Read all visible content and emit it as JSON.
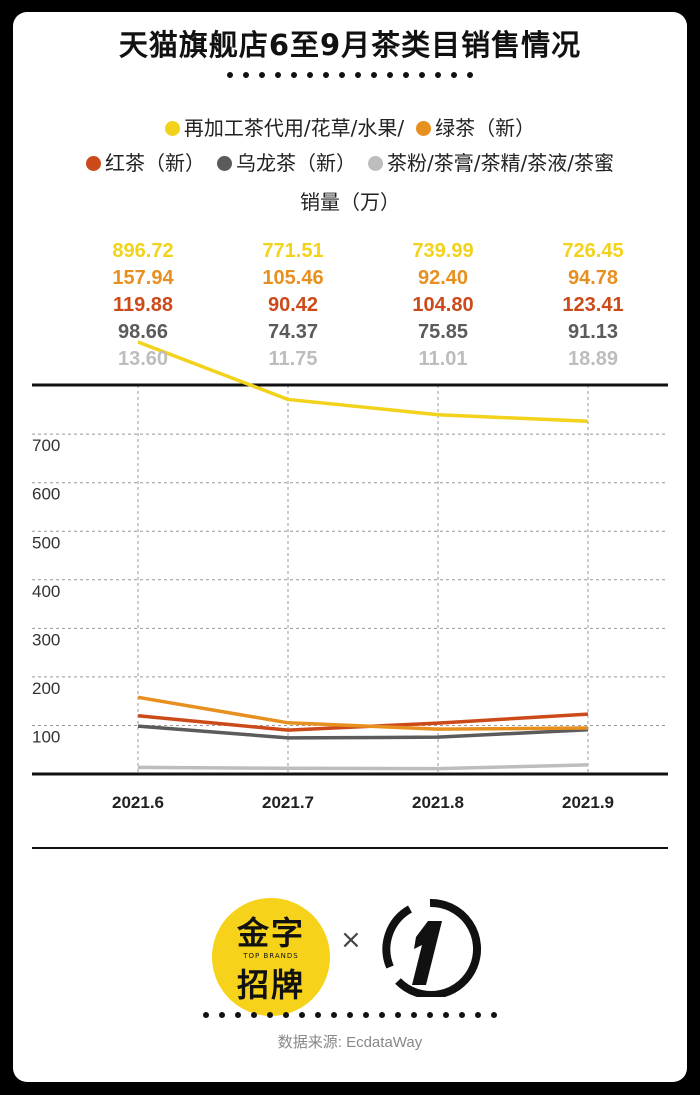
{
  "title": "天猫旗舰店6至9月茶类目销售情况",
  "unit_label": "销量（万）",
  "source": "数据来源: EcdataWay",
  "logos": {
    "left_big_1": "金字",
    "left_big_2": "招牌",
    "left_small": "TOP BRANDS",
    "times": "×"
  },
  "chart_data": {
    "type": "line",
    "categories": [
      "2021.6",
      "2021.7",
      "2021.8",
      "2021.9"
    ],
    "yticks": [
      100,
      200,
      300,
      400,
      500,
      600,
      700
    ],
    "series": [
      {
        "name": "再加工茶代用/花草/水果/",
        "color": "#f2d21a",
        "values": [
          896.72,
          771.51,
          739.99,
          726.45
        ],
        "labels": [
          "896.72",
          "771.51",
          "739.99",
          "726.45"
        ]
      },
      {
        "name": "绿茶（新）",
        "color": "#e8901f",
        "values": [
          157.94,
          105.46,
          92.4,
          94.78
        ],
        "labels": [
          "157.94",
          "105.46",
          "92.40",
          "94.78"
        ]
      },
      {
        "name": "红茶（新）",
        "color": "#cc4a1a",
        "values": [
          119.88,
          90.42,
          104.8,
          123.41
        ],
        "labels": [
          "119.88",
          "90.42",
          "104.80",
          "123.41"
        ]
      },
      {
        "name": "乌龙茶（新）",
        "color": "#5b5b5b",
        "values": [
          98.66,
          74.37,
          75.85,
          91.13
        ],
        "labels": [
          "98.66",
          "74.37",
          "75.85",
          "91.13"
        ]
      },
      {
        "name": "茶粉/茶膏/茶精/茶液/茶蜜",
        "color": "#bdbdbd",
        "values": [
          13.6,
          11.75,
          11.01,
          18.89
        ],
        "labels": [
          "13.60",
          "11.75",
          "11.01",
          "18.89"
        ]
      }
    ],
    "legend_rows": [
      [
        0,
        1
      ],
      [
        2,
        3,
        4
      ]
    ]
  }
}
